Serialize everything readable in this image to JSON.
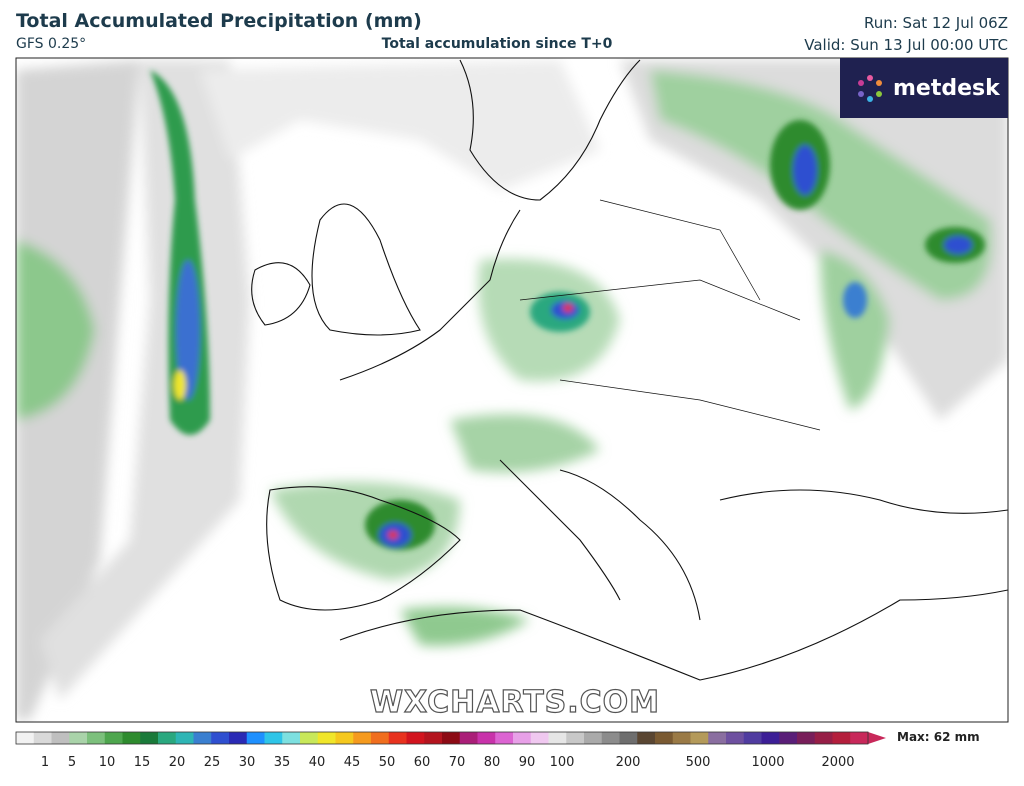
{
  "header": {
    "title": "Total Accumulated Precipitation (mm)",
    "model": "GFS 0.25°",
    "subtitle": "Total accumulation since T+0",
    "run": "Run: Sat 12 Jul 06Z",
    "valid": "Valid: Sun 13 Jul 00:00 UTC"
  },
  "logo": "metdesk",
  "watermark": "WXCHARTS.COM",
  "legend": {
    "ticks": [
      1,
      5,
      10,
      15,
      20,
      25,
      30,
      35,
      40,
      45,
      50,
      60,
      70,
      80,
      90,
      100,
      200,
      500,
      1000,
      2000
    ],
    "max_label": "Max: 62 mm",
    "colors": [
      "#f2f2f2",
      "#d9d9d9",
      "#bfbfbf",
      "#a9d3a9",
      "#7cc07c",
      "#4ea64e",
      "#2e8b2e",
      "#1a7a3a",
      "#2aa87f",
      "#2eb5b5",
      "#3a7fd0",
      "#2f4fd0",
      "#2a2ab5",
      "#1e90ff",
      "#2ec5e8",
      "#7de0e0",
      "#c8e85a",
      "#f0e62a",
      "#f5c81e",
      "#f59a1e",
      "#f06e1e",
      "#e8321e",
      "#d2141e",
      "#b4141e",
      "#8c0a14",
      "#aa1e78",
      "#c832aa",
      "#dc64d2",
      "#e8a0e8",
      "#f0c8f0",
      "#e6e6e6",
      "#c8c8c8",
      "#aaaaaa",
      "#8c8c8c",
      "#6e6e6e",
      "#5a4632",
      "#7a5a32",
      "#9a7a46",
      "#b49a5a",
      "#8a6ea0",
      "#6e50a0",
      "#503ca0",
      "#3c1e96",
      "#5a1e78",
      "#781e5a",
      "#961e46",
      "#b41e3c",
      "#c8285a"
    ]
  }
}
